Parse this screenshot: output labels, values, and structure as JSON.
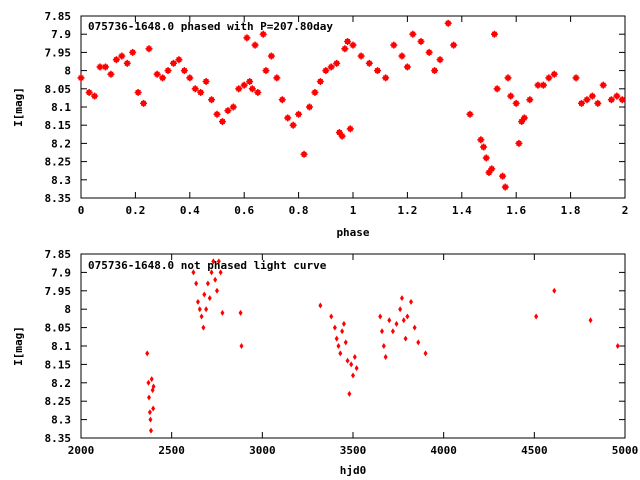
{
  "chart_data": [
    {
      "type": "scatter",
      "title": "075736-1648.0 phased with P=207.80day",
      "xlabel": "phase",
      "ylabel": "I[mag]",
      "xlim": [
        0,
        2
      ],
      "ylim": [
        8.35,
        7.85
      ],
      "x_ticks": [
        0,
        0.2,
        0.4,
        0.6,
        0.8,
        1,
        1.2,
        1.4,
        1.6,
        1.8,
        2
      ],
      "x_tick_labels": [
        "0",
        "0.2",
        "0.4",
        "0.6",
        "0.8",
        "1",
        "1.2",
        "1.4",
        "1.6",
        "1.8",
        "2"
      ],
      "y_ticks": [
        7.85,
        7.9,
        7.95,
        8.0,
        8.05,
        8.1,
        8.15,
        8.2,
        8.25,
        8.3,
        8.35
      ],
      "y_tick_labels": [
        "7.85",
        "7.9",
        "7.95",
        "8",
        "8.05",
        "8.1",
        "8.15",
        "8.2",
        "8.25",
        "8.3",
        "8.35"
      ],
      "marker": "cross",
      "color": "#ff0000",
      "points": [
        [
          0.0,
          8.02
        ],
        [
          0.03,
          8.06
        ],
        [
          0.05,
          8.07
        ],
        [
          0.07,
          7.99
        ],
        [
          0.09,
          7.99
        ],
        [
          0.11,
          8.01
        ],
        [
          0.13,
          7.97
        ],
        [
          0.15,
          7.96
        ],
        [
          0.17,
          7.98
        ],
        [
          0.19,
          7.95
        ],
        [
          0.21,
          8.06
        ],
        [
          0.23,
          8.09
        ],
        [
          0.25,
          7.94
        ],
        [
          0.28,
          8.01
        ],
        [
          0.3,
          8.02
        ],
        [
          0.32,
          8.0
        ],
        [
          0.34,
          7.98
        ],
        [
          0.36,
          7.97
        ],
        [
          0.38,
          8.0
        ],
        [
          0.4,
          8.02
        ],
        [
          0.42,
          8.05
        ],
        [
          0.44,
          8.06
        ],
        [
          0.46,
          8.03
        ],
        [
          0.48,
          8.08
        ],
        [
          0.5,
          8.12
        ],
        [
          0.52,
          8.14
        ],
        [
          0.54,
          8.11
        ],
        [
          0.56,
          8.1
        ],
        [
          0.58,
          8.05
        ],
        [
          0.6,
          8.04
        ],
        [
          0.61,
          7.91
        ],
        [
          0.62,
          8.03
        ],
        [
          0.63,
          8.05
        ],
        [
          0.64,
          7.93
        ],
        [
          0.65,
          8.06
        ],
        [
          0.67,
          7.9
        ],
        [
          0.68,
          8.0
        ],
        [
          0.7,
          7.96
        ],
        [
          0.72,
          8.02
        ],
        [
          0.74,
          8.08
        ],
        [
          0.76,
          8.13
        ],
        [
          0.78,
          8.15
        ],
        [
          0.8,
          8.12
        ],
        [
          0.82,
          8.23
        ],
        [
          0.84,
          8.1
        ],
        [
          0.86,
          8.06
        ],
        [
          0.88,
          8.03
        ],
        [
          0.9,
          8.0
        ],
        [
          0.92,
          7.99
        ],
        [
          0.94,
          7.98
        ],
        [
          0.95,
          8.17
        ],
        [
          0.96,
          8.18
        ],
        [
          0.97,
          7.94
        ],
        [
          0.98,
          7.92
        ],
        [
          0.99,
          8.16
        ],
        [
          1.0,
          7.93
        ],
        [
          1.03,
          7.96
        ],
        [
          1.06,
          7.98
        ],
        [
          1.09,
          8.0
        ],
        [
          1.12,
          8.02
        ],
        [
          1.15,
          7.93
        ],
        [
          1.18,
          7.96
        ],
        [
          1.2,
          7.99
        ],
        [
          1.22,
          7.9
        ],
        [
          1.25,
          7.92
        ],
        [
          1.28,
          7.95
        ],
        [
          1.3,
          8.0
        ],
        [
          1.32,
          7.97
        ],
        [
          1.35,
          7.87
        ],
        [
          1.37,
          7.93
        ],
        [
          1.43,
          8.12
        ],
        [
          1.47,
          8.19
        ],
        [
          1.48,
          8.21
        ],
        [
          1.49,
          8.24
        ],
        [
          1.5,
          8.28
        ],
        [
          1.51,
          8.27
        ],
        [
          1.52,
          7.9
        ],
        [
          1.53,
          8.05
        ],
        [
          1.55,
          8.29
        ],
        [
          1.56,
          8.32
        ],
        [
          1.57,
          8.02
        ],
        [
          1.58,
          8.07
        ],
        [
          1.6,
          8.09
        ],
        [
          1.61,
          8.2
        ],
        [
          1.62,
          8.14
        ],
        [
          1.63,
          8.13
        ],
        [
          1.65,
          8.08
        ],
        [
          1.68,
          8.04
        ],
        [
          1.7,
          8.04
        ],
        [
          1.72,
          8.02
        ],
        [
          1.74,
          8.01
        ],
        [
          1.82,
          8.02
        ],
        [
          1.84,
          8.09
        ],
        [
          1.86,
          8.08
        ],
        [
          1.88,
          8.07
        ],
        [
          1.9,
          8.09
        ],
        [
          1.92,
          8.04
        ],
        [
          1.95,
          8.08
        ],
        [
          1.97,
          8.07
        ],
        [
          1.99,
          8.08
        ]
      ],
      "annotation": ""
    },
    {
      "type": "scatter",
      "title": "075736-1648.0 not phased light curve",
      "xlabel": "hjd0",
      "ylabel": "I[mag]",
      "xlim": [
        2000,
        5000
      ],
      "ylim": [
        8.35,
        7.85
      ],
      "x_ticks": [
        2000,
        2500,
        3000,
        3500,
        4000,
        4500,
        5000
      ],
      "x_tick_labels": [
        "2000",
        "2500",
        "3000",
        "3500",
        "4000",
        "4500",
        "5000"
      ],
      "y_ticks": [
        7.85,
        7.9,
        7.95,
        8.0,
        8.05,
        8.1,
        8.15,
        8.2,
        8.25,
        8.3,
        8.35
      ],
      "y_tick_labels": [
        "7.85",
        "7.9",
        "7.95",
        "8",
        "8.05",
        "8.1",
        "8.15",
        "8.2",
        "8.25",
        "8.3",
        "8.35"
      ],
      "marker": "diamond",
      "color": "#ff0000",
      "points": [
        [
          2365,
          8.12
        ],
        [
          2372,
          8.2
        ],
        [
          2375,
          8.24
        ],
        [
          2380,
          8.28
        ],
        [
          2383,
          8.3
        ],
        [
          2386,
          8.33
        ],
        [
          2390,
          8.19
        ],
        [
          2395,
          8.22
        ],
        [
          2398,
          8.27
        ],
        [
          2400,
          8.21
        ],
        [
          2620,
          7.9
        ],
        [
          2635,
          7.93
        ],
        [
          2645,
          7.98
        ],
        [
          2655,
          8.0
        ],
        [
          2665,
          8.02
        ],
        [
          2675,
          8.05
        ],
        [
          2680,
          7.96
        ],
        [
          2690,
          8.0
        ],
        [
          2700,
          7.93
        ],
        [
          2710,
          7.97
        ],
        [
          2720,
          7.9
        ],
        [
          2730,
          7.87
        ],
        [
          2740,
          7.92
        ],
        [
          2750,
          7.95
        ],
        [
          2760,
          7.87
        ],
        [
          2770,
          7.9
        ],
        [
          2780,
          8.01
        ],
        [
          2880,
          8.01
        ],
        [
          2885,
          8.1
        ],
        [
          3320,
          7.99
        ],
        [
          3380,
          8.02
        ],
        [
          3400,
          8.05
        ],
        [
          3410,
          8.08
        ],
        [
          3420,
          8.1
        ],
        [
          3430,
          8.12
        ],
        [
          3440,
          8.06
        ],
        [
          3450,
          8.04
        ],
        [
          3460,
          8.09
        ],
        [
          3470,
          8.14
        ],
        [
          3480,
          8.23
        ],
        [
          3490,
          8.15
        ],
        [
          3500,
          8.18
        ],
        [
          3510,
          8.13
        ],
        [
          3520,
          8.16
        ],
        [
          3650,
          8.02
        ],
        [
          3660,
          8.06
        ],
        [
          3670,
          8.1
        ],
        [
          3680,
          8.13
        ],
        [
          3700,
          8.03
        ],
        [
          3720,
          8.06
        ],
        [
          3740,
          8.04
        ],
        [
          3760,
          8.0
        ],
        [
          3770,
          7.97
        ],
        [
          3780,
          8.03
        ],
        [
          3790,
          8.08
        ],
        [
          3800,
          8.02
        ],
        [
          3820,
          7.98
        ],
        [
          3840,
          8.05
        ],
        [
          3860,
          8.09
        ],
        [
          3900,
          8.12
        ],
        [
          4510,
          8.02
        ],
        [
          4610,
          7.95
        ],
        [
          4810,
          8.03
        ],
        [
          4960,
          8.1
        ]
      ]
    }
  ]
}
